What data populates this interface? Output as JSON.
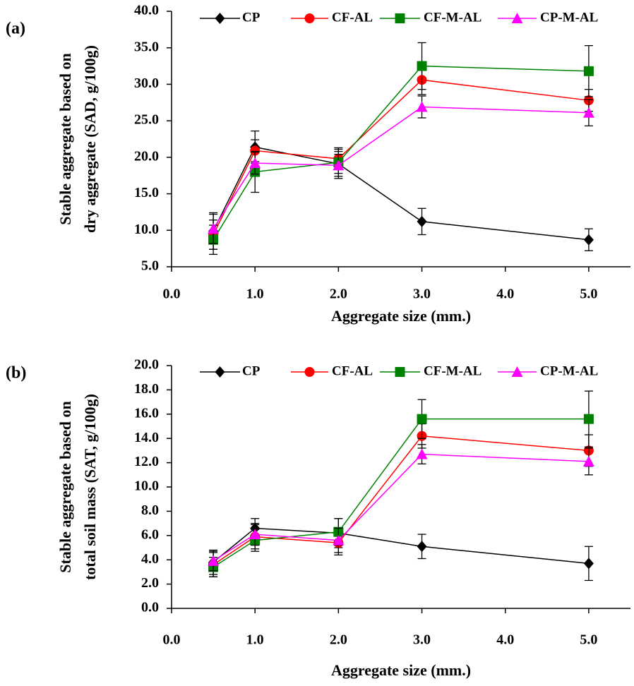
{
  "chart_data": [
    {
      "type": "line",
      "panel_label": "(a)",
      "y_label": [
        "Stable aggregate based on",
        "dry aggregate (SAD, g/100g)"
      ],
      "x_label": "Aggregate size (mm.)",
      "x": [
        0.5,
        1,
        2,
        3,
        5
      ],
      "xlim": [
        0,
        5.5
      ],
      "xticks": [
        {
          "value": 0,
          "label": "0.0"
        },
        {
          "value": 1,
          "label": "1.0"
        },
        {
          "value": 2,
          "label": "2.0"
        },
        {
          "value": 3,
          "label": "3.0"
        },
        {
          "value": 4,
          "label": "4.0"
        },
        {
          "value": 5,
          "label": "5.0"
        }
      ],
      "ylim": [
        5,
        40
      ],
      "yticks": [
        {
          "value": 5,
          "label": "5.0"
        },
        {
          "value": 10,
          "label": "10.0"
        },
        {
          "value": 15,
          "label": "15.0"
        },
        {
          "value": 20,
          "label": "20.0"
        },
        {
          "value": 25,
          "label": "25.0"
        },
        {
          "value": 30,
          "label": "30.0"
        },
        {
          "value": 35,
          "label": "35.0"
        },
        {
          "value": 40,
          "label": "40.0"
        }
      ],
      "series": [
        {
          "name": "CP",
          "color": "#000000",
          "marker": "diamond",
          "values": [
            9.9,
            21.4,
            19.1,
            11.2,
            8.7
          ],
          "errors": [
            2.5,
            2.2,
            2.0,
            1.8,
            1.5
          ]
        },
        {
          "name": "CF-AL",
          "color": "#ff0000",
          "marker": "circle",
          "values": [
            9.4,
            20.9,
            19.8,
            30.6,
            27.8
          ],
          "errors": [
            2.0,
            1.5,
            1.5,
            2.0,
            1.5
          ]
        },
        {
          "name": "CF-M-AL",
          "color": "#008000",
          "marker": "square",
          "values": [
            8.7,
            18.0,
            19.3,
            32.5,
            31.8
          ],
          "errors": [
            2.0,
            2.8,
            1.5,
            3.2,
            3.5
          ]
        },
        {
          "name": "CP-M-AL",
          "color": "#ff00ff",
          "marker": "triangle",
          "values": [
            10.2,
            19.2,
            18.9,
            26.9,
            26.1
          ],
          "errors": [
            2.0,
            1.5,
            1.5,
            1.5,
            1.8
          ]
        }
      ]
    },
    {
      "type": "line",
      "panel_label": "(b)",
      "y_label": [
        "Stable aggregate based on",
        "total soil mass (SAT, g/100g)"
      ],
      "x_label": "Aggregate size (mm.)",
      "x": [
        0.5,
        1,
        2,
        3,
        5
      ],
      "xlim": [
        0,
        5.5
      ],
      "xticks": [
        {
          "value": 0,
          "label": "0.0"
        },
        {
          "value": 1,
          "label": "1.0"
        },
        {
          "value": 2,
          "label": "2.0"
        },
        {
          "value": 3,
          "label": "3.0"
        },
        {
          "value": 4,
          "label": "4.0"
        },
        {
          "value": 5,
          "label": "5.0"
        }
      ],
      "ylim": [
        0,
        20
      ],
      "yticks": [
        {
          "value": 0,
          "label": "0.0"
        },
        {
          "value": 2,
          "label": "2.0"
        },
        {
          "value": 4,
          "label": "4.0"
        },
        {
          "value": 6,
          "label": "6.0"
        },
        {
          "value": 8,
          "label": "8.0"
        },
        {
          "value": 10,
          "label": "10.0"
        },
        {
          "value": 12,
          "label": "12.0"
        },
        {
          "value": 14,
          "label": "14.0"
        },
        {
          "value": 16,
          "label": "16.0"
        },
        {
          "value": 18,
          "label": "18.0"
        },
        {
          "value": 20,
          "label": "20.0"
        }
      ],
      "series": [
        {
          "name": "CP",
          "color": "#000000",
          "marker": "diamond",
          "values": [
            3.8,
            6.6,
            6.2,
            5.1,
            3.7
          ],
          "errors": [
            1.0,
            0.8,
            1.2,
            1.0,
            1.4
          ]
        },
        {
          "name": "CF-AL",
          "color": "#ff0000",
          "marker": "circle",
          "values": [
            3.6,
            5.9,
            5.4,
            14.2,
            13.0
          ],
          "errors": [
            1.0,
            1.0,
            1.0,
            1.0,
            1.3
          ]
        },
        {
          "name": "CF-M-AL",
          "color": "#008000",
          "marker": "square",
          "values": [
            3.4,
            5.6,
            6.3,
            15.6,
            15.6
          ],
          "errors": [
            0.8,
            0.9,
            1.1,
            1.6,
            2.3
          ]
        },
        {
          "name": "CP-M-AL",
          "color": "#ff00ff",
          "marker": "triangle",
          "values": [
            3.9,
            6.1,
            5.6,
            12.7,
            12.1
          ],
          "errors": [
            0.8,
            0.9,
            1.0,
            0.8,
            1.1
          ]
        }
      ]
    }
  ]
}
